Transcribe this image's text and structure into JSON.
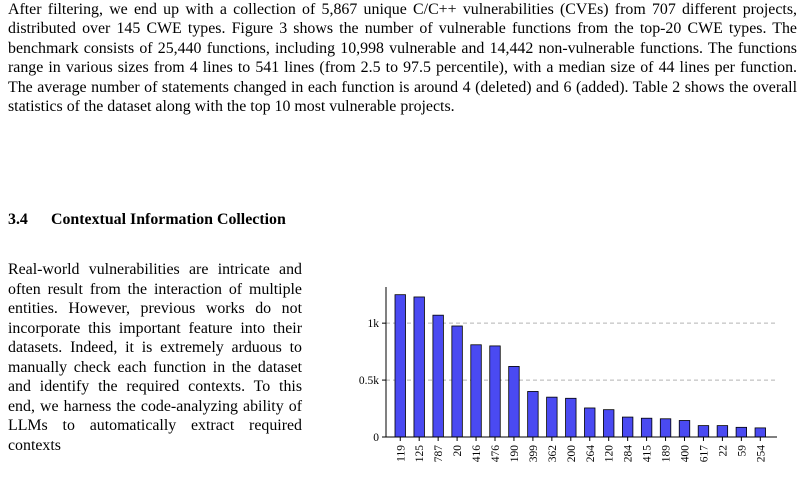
{
  "paragraph_1": "After filtering, we end up with a collection of 5,867 unique C/C++ vulnerabilities (CVEs) from 707 different projects, distributed over 145 CWE types. Figure 3 shows the number of vulnerable functions from the top-20 CWE types. The benchmark consists of 25,440 functions, including 10,998 vulnerable and 14,442 non-vulnerable functions. The functions range in various sizes from 4 lines to 541 lines (from 2.5 to 97.5 percentile), with a median size of 44 lines per function. The average number of statements changed in each function is around 4 (deleted) and 6 (added). Table 2 shows the overall statistics of the dataset along with the top 10 most vulnerable projects.",
  "section": {
    "number": "3.4",
    "title": "Contextual Information Collection"
  },
  "paragraph_2": "Real-world vulnerabilities are intricate and often result from the interaction of multiple entities. However, previous works do not incorporate this important feature into their datasets. Indeed, it is extremely arduous to manually check each function in the dataset and identify the required contexts. To this end, we harness the code-analyzing ability of LLMs to automatically extract required contexts",
  "colors": {
    "bar_fill": "#4a4af2",
    "bar_stroke": "#000000",
    "gridline": "#b3b3b3"
  },
  "chart_data": {
    "type": "bar",
    "categories": [
      "119",
      "125",
      "787",
      "20",
      "416",
      "476",
      "190",
      "399",
      "362",
      "200",
      "264",
      "120",
      "284",
      "415",
      "189",
      "400",
      "617",
      "22",
      "59",
      "254"
    ],
    "values": [
      1250,
      1230,
      1070,
      975,
      810,
      800,
      620,
      400,
      350,
      340,
      255,
      240,
      175,
      165,
      160,
      145,
      100,
      100,
      85,
      80
    ],
    "ylim": [
      0,
      1300
    ],
    "yticks": [
      0,
      500,
      1000
    ],
    "ytick_labels": [
      "0",
      "0.5k",
      "1k"
    ],
    "grid": "horizontal dashed at 0.5k and 1k",
    "title": "",
    "xlabel": "",
    "ylabel": ""
  }
}
